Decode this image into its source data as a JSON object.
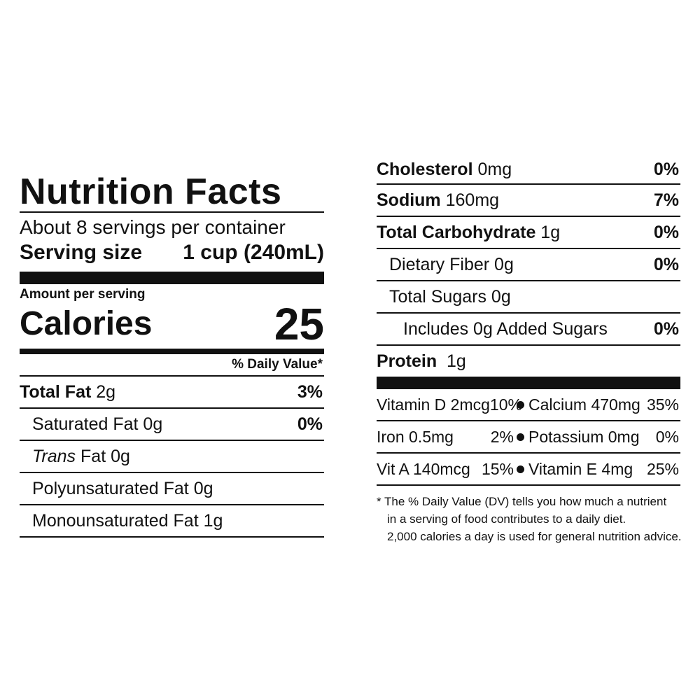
{
  "label": {
    "title": "Nutrition Facts",
    "servings_per_container": "About 8 servings per container",
    "serving_size_label": "Serving size",
    "serving_size_value": "1 cup (240mL)",
    "amount_per_serving": "Amount per serving",
    "calories_label": "Calories",
    "calories_value": "25",
    "daily_value_header": "% Daily Value*"
  },
  "nutrients_left": [
    {
      "name": "Total Fat",
      "amount": "2g",
      "dv": "3%"
    },
    {
      "name": "Saturated Fat 0g",
      "dv": "0%"
    },
    {
      "name_italic": "Trans",
      "name": "Fat 0g"
    },
    {
      "name": "Polyunsaturated Fat 0g"
    },
    {
      "name": "Monounsaturated Fat 1g"
    }
  ],
  "nutrients_right": [
    {
      "name": "Cholesterol",
      "amount": "0mg",
      "dv": "0%"
    },
    {
      "name": "Sodium",
      "amount": "160mg",
      "dv": "7%"
    },
    {
      "name": "Total Carbohydrate",
      "amount": "1g",
      "dv": "0%"
    },
    {
      "name": "Dietary Fiber 0g",
      "dv": "0%"
    },
    {
      "name": "Total Sugars 0g"
    },
    {
      "name": "Includes 0g Added Sugars",
      "dv": "0%"
    },
    {
      "name": "Protein",
      "amount": "1g"
    }
  ],
  "vitamins": [
    {
      "a_name": "Vitamin D 2mcg",
      "a_dv": "10%",
      "b_name": "Calcium 470mg",
      "b_dv": "35%"
    },
    {
      "a_name": "Iron 0.5mg",
      "a_dv": "2%",
      "b_name": "Potassium 0mg",
      "b_dv": "0%"
    },
    {
      "a_name": "Vit A 140mcg",
      "a_dv": "15%",
      "b_name": "Vitamin E 4mg",
      "b_dv": "25%"
    }
  ],
  "footnote": {
    "line1": "* The % Daily Value (DV) tells you how much a nutrient",
    "line2": "in a serving of food contributes to a daily diet.",
    "line3": "2,000 calories a day is used for general nutrition advice."
  }
}
